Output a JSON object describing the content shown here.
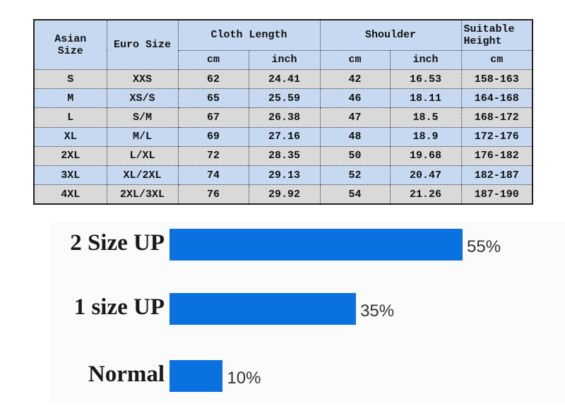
{
  "table": {
    "headers": {
      "asian_size": "Asian Size",
      "euro_size": "Euro Size",
      "cloth_length": "Cloth Length",
      "shoulder": "Shoulder",
      "suitable_height": "Suitable Height",
      "cl_cm": "cm",
      "cl_inch": "inch",
      "sh_cm": "cm",
      "sh_inch": "inch",
      "h_cm": "cm"
    },
    "rows": [
      [
        "S",
        "XXS",
        "62",
        "24.41",
        "42",
        "16.53",
        "158-163"
      ],
      [
        "M",
        "XS/S",
        "65",
        "25.59",
        "46",
        "18.11",
        "164-168"
      ],
      [
        "L",
        "S/M",
        "67",
        "26.38",
        "47",
        "18.5",
        "168-172"
      ],
      [
        "XL",
        "M/L",
        "69",
        "27.16",
        "48",
        "18.9",
        "172-176"
      ],
      [
        "2XL",
        "L/XL",
        "72",
        "28.35",
        "50",
        "19.68",
        "176-182"
      ],
      [
        "3XL",
        "XL/2XL",
        "74",
        "29.13",
        "52",
        "20.47",
        "182-187"
      ],
      [
        "4XL",
        "2XL/3XL",
        "76",
        "29.92",
        "54",
        "21.26",
        "187-190"
      ]
    ],
    "colors": {
      "header": "#c6d9f1",
      "gray_row": "#d9d9d9",
      "blue_row": "#c6d9f1"
    }
  },
  "chart_data": {
    "type": "bar",
    "orientation": "horizontal",
    "categories": [
      "2 Size UP",
      "1 size UP",
      "Normal"
    ],
    "values": [
      55,
      35,
      10
    ],
    "value_labels": [
      "55%",
      "35%",
      "10%"
    ],
    "unit": "%",
    "xlim": [
      0,
      55
    ],
    "grid": false,
    "bar_color": "#0a72e0"
  }
}
